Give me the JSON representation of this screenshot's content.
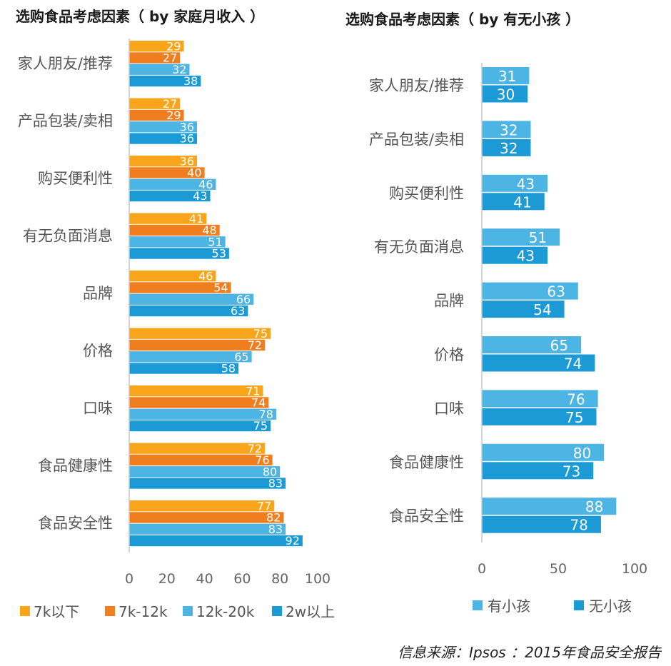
{
  "colors": {
    "orange_light": "#F8A51B",
    "orange": "#F07E1F",
    "blue_light": "#4CB5E3",
    "blue": "#1C9AD6",
    "axis": "#c8c8c8"
  },
  "source": "信息来源：Ipsos ：2015年食品安全报告",
  "chart_data": [
    {
      "type": "bar",
      "orientation": "horizontal",
      "title": "选购食品考虑因素（ by 家庭月收入 ）",
      "categories": [
        "家人朋友/推荐",
        "产品包装/卖相",
        "购买便利性",
        "有无负面消息",
        "品牌",
        "价格",
        "口味",
        "食品健康性",
        "食品安全性"
      ],
      "series": [
        {
          "name": "7k以下",
          "values": [
            29,
            27,
            36,
            41,
            46,
            75,
            71,
            72,
            77
          ]
        },
        {
          "name": "7k-12k",
          "values": [
            27,
            29,
            40,
            48,
            54,
            72,
            74,
            76,
            82
          ]
        },
        {
          "name": "12k-20k",
          "values": [
            32,
            36,
            46,
            51,
            66,
            65,
            78,
            80,
            83
          ]
        },
        {
          "name": "2w以上",
          "values": [
            38,
            36,
            43,
            53,
            63,
            58,
            75,
            83,
            92
          ]
        }
      ],
      "xlim": [
        0,
        100
      ],
      "xticks": [
        0,
        20,
        40,
        60,
        80,
        100
      ],
      "grid": false,
      "legend": "bottom"
    },
    {
      "type": "bar",
      "orientation": "horizontal",
      "title": "选购食品考虑因素（ by 有无小孩 ）",
      "categories": [
        "家人朋友/推荐",
        "产品包装/卖相",
        "购买便利性",
        "有无负面消息",
        "品牌",
        "价格",
        "口味",
        "食品健康性",
        "食品安全性"
      ],
      "series": [
        {
          "name": "有小孩",
          "values": [
            31,
            32,
            43,
            51,
            63,
            65,
            76,
            80,
            88
          ]
        },
        {
          "name": "无小孩",
          "values": [
            30,
            32,
            41,
            43,
            54,
            74,
            75,
            73,
            78
          ]
        }
      ],
      "xlim": [
        0,
        100
      ],
      "xticks": [
        0,
        50,
        100
      ],
      "grid": false,
      "legend": "bottom"
    }
  ]
}
